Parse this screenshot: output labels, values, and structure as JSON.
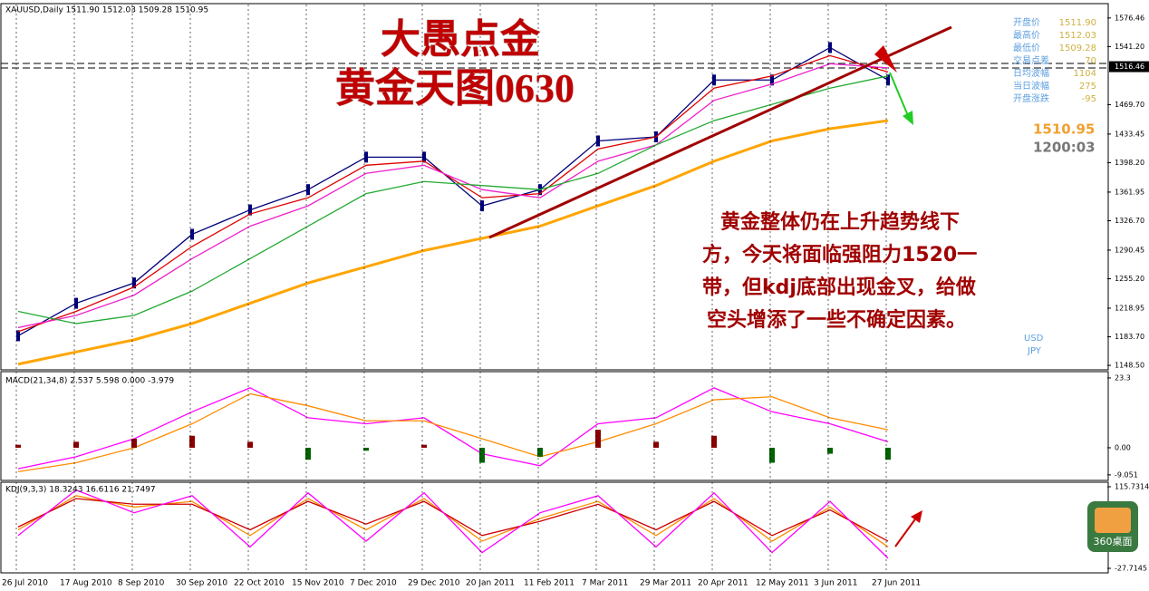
{
  "chart_data": [
    {
      "type": "line",
      "label": "XAUUSD,Daily  1511.90 1512.03 1509.28 1510.95",
      "title": "大愚点金",
      "subtitle": "黄金天图0630",
      "annotation": [
        "黄金整体仍在上升趋势线下",
        "方，今天将面临强阻力1520一",
        "带，但kdj底部出现金叉，给做",
        "空头增添了一些不确定因素。"
      ],
      "info_panel": [
        {
          "label": "开盘价",
          "value": "1511.90"
        },
        {
          "label": "最高价",
          "value": "1512.03"
        },
        {
          "label": "最低价",
          "value": "1509.28"
        },
        {
          "label": "交易点差",
          "value": "70"
        },
        {
          "label": "日均波幅",
          "value": "1104"
        },
        {
          "label": "当日波幅",
          "value": "275"
        },
        {
          "label": "开盘涨跌",
          "value": "-95"
        }
      ],
      "price_label": "1510.95",
      "time_label": "1200:03",
      "currency_labels": [
        "USD",
        "JPY"
      ],
      "categories": [
        "26 Jul 2010",
        "17 Aug 2010",
        "8 Sep 2010",
        "30 Sep 2010",
        "22 Oct 2010",
        "15 Nov 2010",
        "7 Dec 2010",
        "29 Dec 2010",
        "20 Jan 2011",
        "11 Feb 2011",
        "7 Mar 2011",
        "29 Mar 2011",
        "20 Apr 2011",
        "12 May 2011",
        "3 Jun 2011",
        "27 Jun 2011"
      ],
      "series": [
        {
          "color": "#00007a",
          "values": [
            1185,
            1225,
            1250,
            1310,
            1340,
            1365,
            1405,
            1405,
            1345,
            1365,
            1425,
            1430,
            1500,
            1500,
            1540,
            1500
          ]
        },
        {
          "color": "#e00000",
          "values": [
            1190,
            1215,
            1245,
            1295,
            1335,
            1355,
            1395,
            1400,
            1355,
            1360,
            1415,
            1430,
            1490,
            1505,
            1530,
            1510
          ]
        },
        {
          "color": "#ee22cc",
          "values": [
            1195,
            1210,
            1235,
            1280,
            1320,
            1345,
            1385,
            1395,
            1365,
            1355,
            1400,
            1420,
            1475,
            1495,
            1520,
            1515
          ]
        },
        {
          "color": "#22aa33",
          "values": [
            1215,
            1200,
            1210,
            1240,
            1280,
            1320,
            1360,
            1375,
            1370,
            1365,
            1385,
            1420,
            1450,
            1470,
            1490,
            1505
          ]
        },
        {
          "color": "#ffa500",
          "values": [
            1150,
            1165,
            1180,
            1200,
            1225,
            1250,
            1270,
            1290,
            1305,
            1320,
            1345,
            1370,
            1400,
            1425,
            1440,
            1450
          ]
        }
      ],
      "ylim": [
        1143,
        1593
      ],
      "yticks": [
        1576.46,
        {
          "value": 1541.2,
          "label": "1541.20"
        },
        {
          "value": 1469.7,
          "label": "1469.70"
        },
        1433.45,
        {
          "value": 1398.2,
          "label": "1398.20"
        },
        1361.95,
        {
          "value": 1326.7,
          "label": "1326.70"
        },
        1290.45,
        {
          "value": 1255.2,
          "label": "1255.20"
        },
        1218.95,
        {
          "value": 1183.7,
          "label": "1183.70"
        },
        {
          "value": 1148.5,
          "label": "1148.50"
        }
      ],
      "current_tick": 1516.46,
      "grid": true
    },
    {
      "type": "line",
      "label": "MACD(21,34,8) 2.537 5.598 0.000 -3.979",
      "series": [
        {
          "color": "#ff00ff",
          "values": [
            -7,
            -3,
            3,
            12,
            20,
            10,
            8,
            10,
            -2,
            -6,
            8,
            10,
            20,
            12,
            8,
            2
          ]
        },
        {
          "color": "#ff8c00",
          "values": [
            -8,
            -5,
            0,
            8,
            18,
            14,
            9,
            9,
            3,
            -3,
            2,
            8,
            16,
            17,
            10,
            6
          ]
        }
      ],
      "histogram": [
        1,
        2,
        3,
        4,
        2,
        -4,
        -1,
        1,
        -5,
        -3,
        6,
        2,
        4,
        -5,
        -2,
        -4
      ],
      "histogram_colors": [
        "#8b0000",
        "#006400"
      ],
      "ylim": [
        -10.9,
        25.4
      ],
      "yticks": [
        23.3,
        {
          "value": 0,
          "label": "0.00"
        },
        -9.051
      ]
    },
    {
      "type": "line",
      "label": "KDJ(9,3,3) 18.3243 16.6116 21.7497",
      "series": [
        {
          "color": "#ff8c00",
          "values": [
            40,
            100,
            80,
            90,
            30,
            95,
            40,
            95,
            20,
            60,
            90,
            30,
            95,
            20,
            80,
            10
          ]
        },
        {
          "color": "#cc0000",
          "values": [
            45,
            95,
            85,
            85,
            40,
            90,
            50,
            90,
            30,
            55,
            85,
            40,
            90,
            30,
            75,
            20
          ]
        },
        {
          "color": "#ff00ff",
          "values": [
            30,
            110,
            70,
            100,
            10,
            105,
            20,
            105,
            0,
            70,
            100,
            10,
            105,
            0,
            90,
            -10
          ]
        }
      ],
      "ylim": [
        -35.7,
        123.7
      ],
      "yticks": [
        115.7314,
        -27.7145
      ]
    }
  ],
  "overlay": {
    "icon_label": "360桌面"
  }
}
